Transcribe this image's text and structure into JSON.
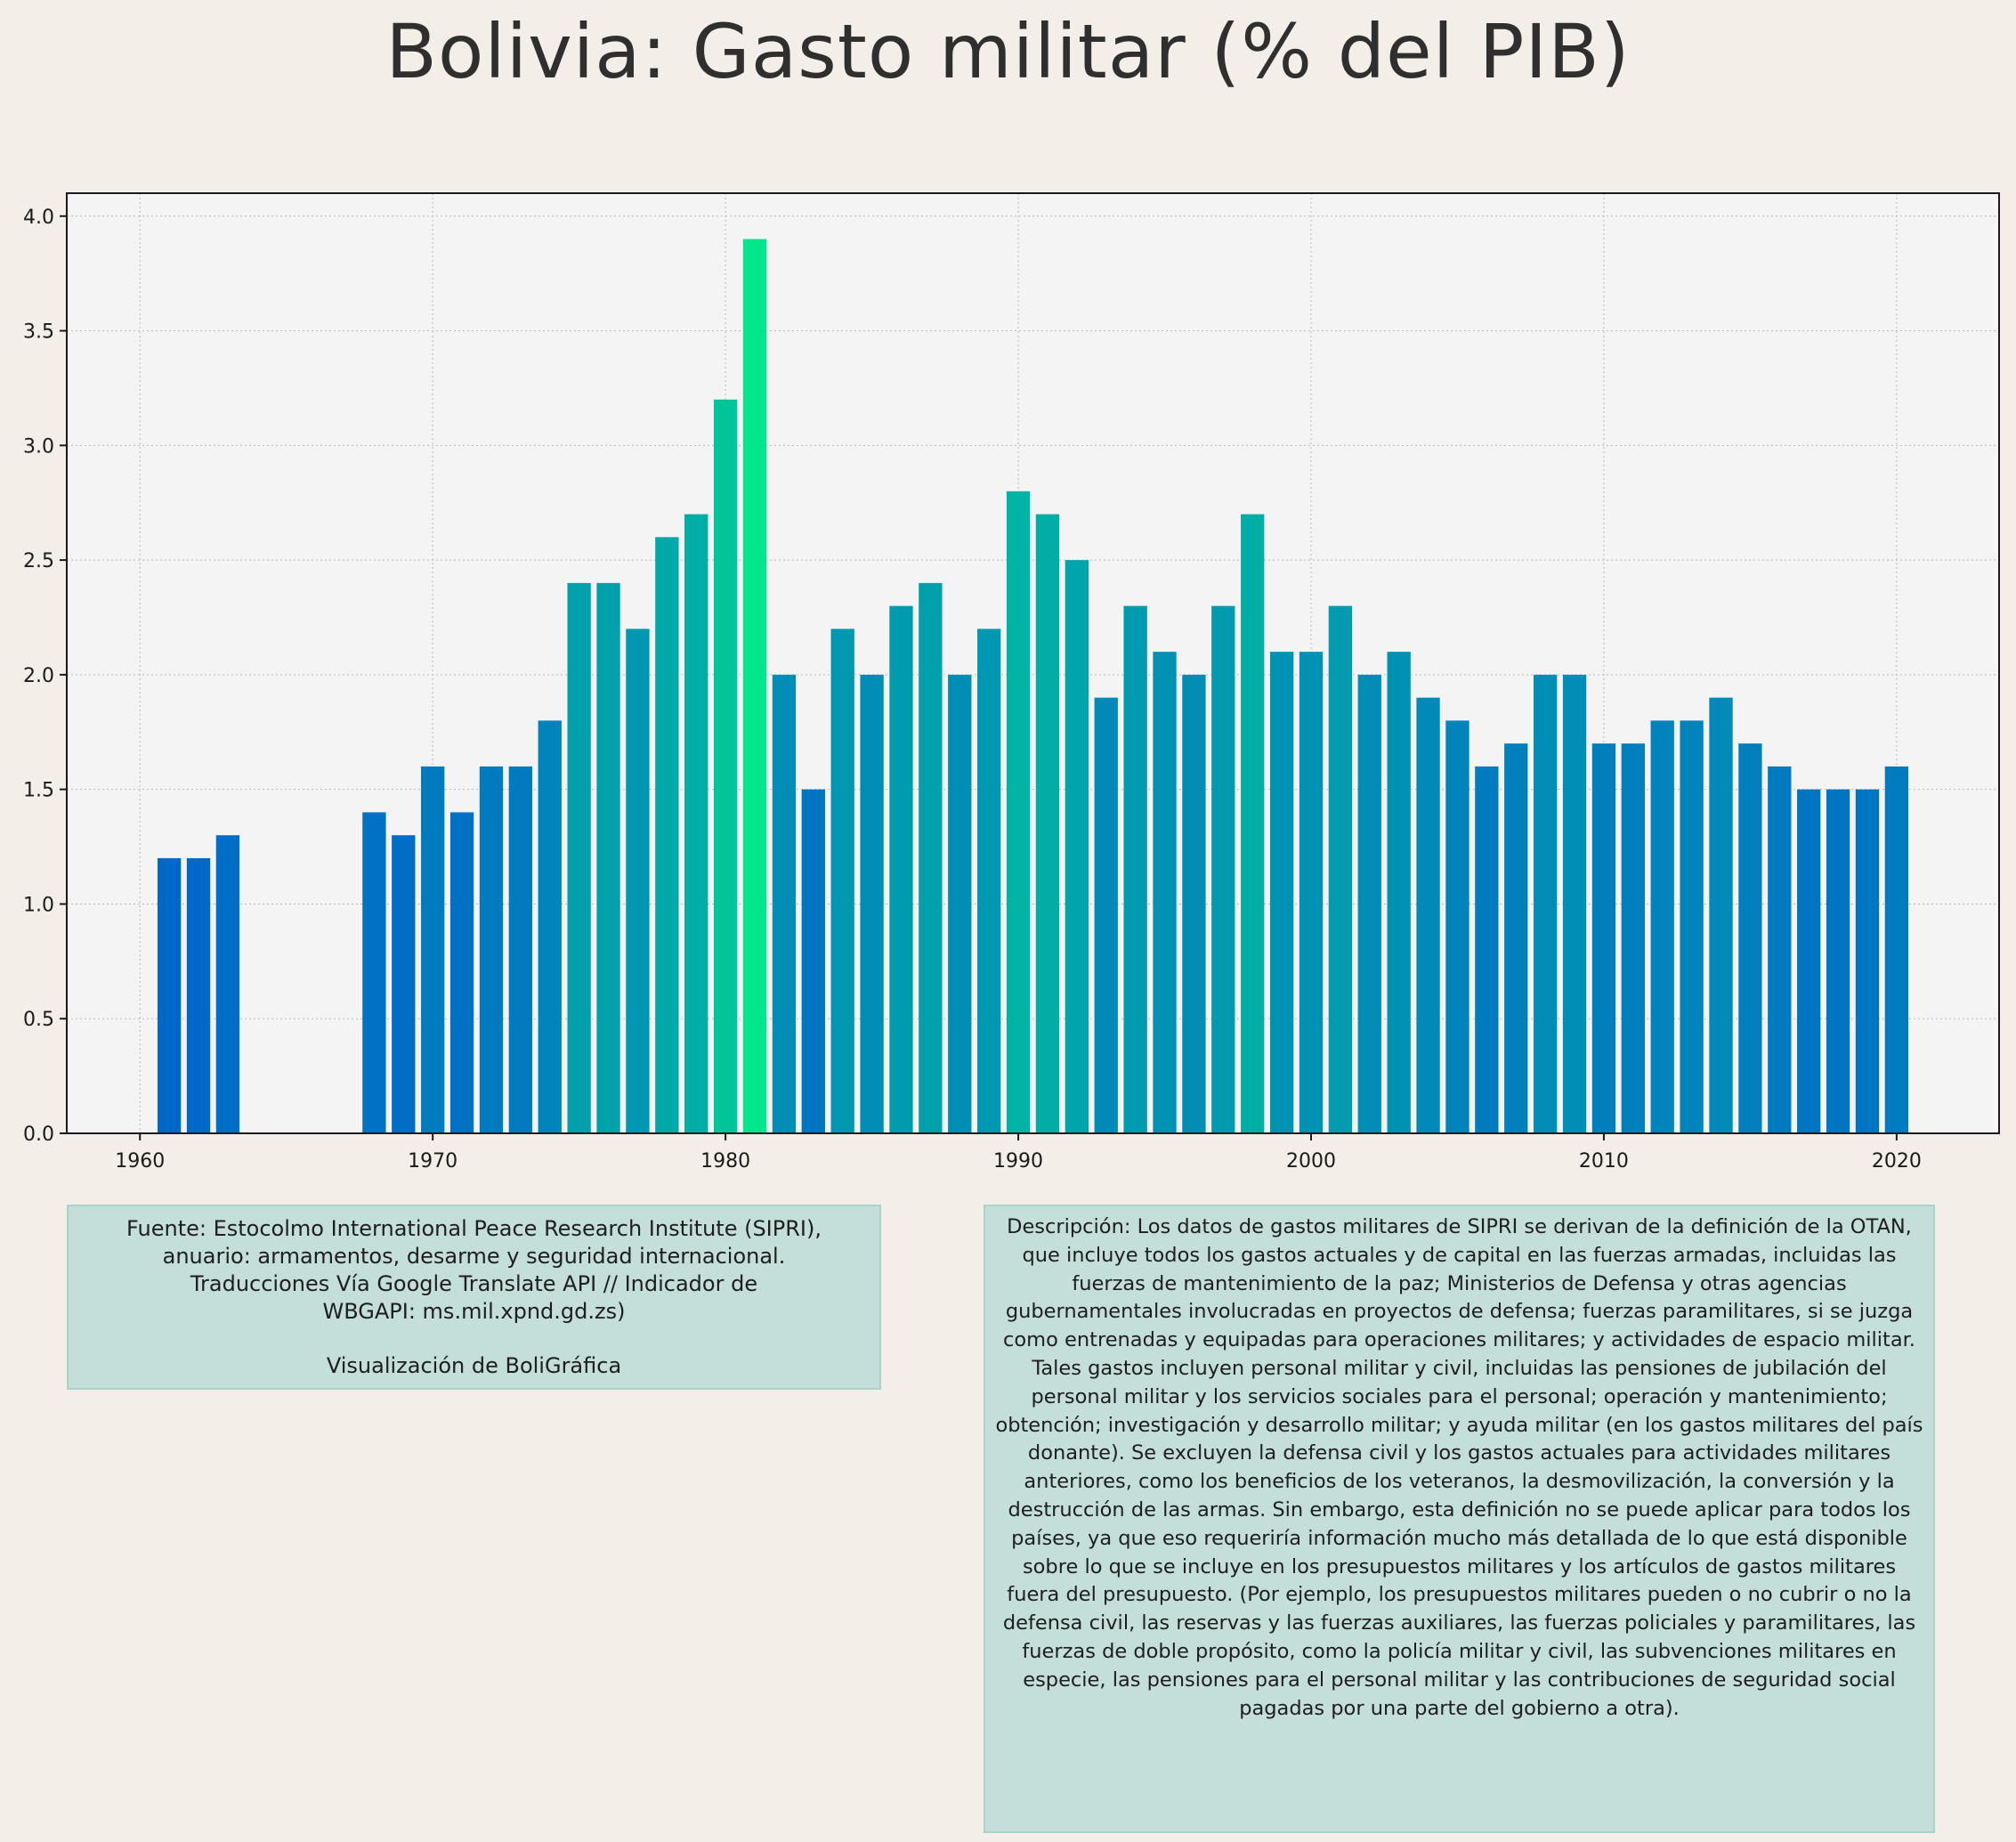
{
  "title": "Bolivia:  Gasto militar (% del PIB)",
  "chart_data": {
    "type": "bar",
    "title": "Bolivia:  Gasto militar (% del PIB)",
    "xlabel": "",
    "ylabel": "",
    "x": [
      1961,
      1962,
      1963,
      1968,
      1969,
      1970,
      1971,
      1972,
      1973,
      1974,
      1975,
      1976,
      1977,
      1978,
      1979,
      1980,
      1981,
      1982,
      1983,
      1984,
      1985,
      1986,
      1987,
      1988,
      1989,
      1990,
      1991,
      1992,
      1993,
      1994,
      1995,
      1996,
      1997,
      1998,
      1999,
      2000,
      2001,
      2002,
      2003,
      2004,
      2005,
      2006,
      2007,
      2008,
      2009,
      2010,
      2011,
      2012,
      2013,
      2014,
      2015,
      2016,
      2017,
      2018,
      2019,
      2020
    ],
    "values": [
      1.2,
      1.2,
      1.3,
      1.4,
      1.3,
      1.6,
      1.4,
      1.6,
      1.6,
      1.8,
      2.4,
      2.4,
      2.2,
      2.6,
      2.7,
      3.2,
      3.9,
      2.0,
      1.5,
      2.2,
      2.0,
      2.3,
      2.4,
      2.0,
      2.2,
      2.8,
      2.7,
      2.5,
      1.9,
      2.3,
      2.1,
      2.0,
      2.3,
      2.7,
      2.1,
      2.1,
      2.3,
      2.0,
      2.1,
      1.9,
      1.8,
      1.6,
      1.7,
      2.0,
      2.0,
      1.7,
      1.7,
      1.8,
      1.8,
      1.9,
      1.7,
      1.6,
      1.5,
      1.5,
      1.5,
      1.6
    ],
    "xlim": [
      1957.5,
      2023.5
    ],
    "ylim": [
      0,
      4.1
    ],
    "xticks": [
      1960,
      1970,
      1980,
      1990,
      2000,
      2010,
      2020
    ],
    "yticks": [
      0.0,
      0.5,
      1.0,
      1.5,
      2.0,
      2.5,
      3.0,
      3.5,
      4.0
    ],
    "grid": true,
    "colormap": {
      "low": "#0068c9",
      "high": "#00e68a"
    }
  },
  "source": {
    "lines": [
      "Fuente: Estocolmo International Peace Research Institute (SIPRI),",
      "anuario: armamentos, desarme y seguridad internacional.",
      "Traducciones Vía Google Translate API // Indicador de",
      "WBGAPI: ms.mil.xpnd.gd.zs)"
    ],
    "credit": "Visualización de BoliGráfica"
  },
  "description": "Descripción: Los datos de gastos militares de SIPRI se derivan de la definición de la OTAN, que incluye todos los gastos actuales y de capital en las fuerzas armadas, incluidas las fuerzas de mantenimiento de la paz; Ministerios de Defensa y otras agencias gubernamentales involucradas en proyectos de defensa; fuerzas paramilitares, si se juzga como entrenadas y equipadas para operaciones militares; y actividades de espacio militar. Tales gastos incluyen personal militar y civil, incluidas las pensiones de jubilación del personal militar y los servicios sociales para el personal; operación y mantenimiento; obtención; investigación y desarrollo militar; y ayuda militar (en los gastos militares del país donante). Se excluyen la defensa civil y los gastos actuales para actividades militares anteriores, como los beneficios de los veteranos, la desmovilización, la conversión y la destrucción de las armas. Sin embargo, esta definición no se puede aplicar para todos los países, ya que eso requeriría información mucho más detallada de lo que está disponible sobre lo que se incluye en los presupuestos militares y los artículos de gastos militares fuera del presupuesto. (Por ejemplo, los presupuestos militares pueden o no cubrir o no la defensa civil, las reservas y las fuerzas auxiliares, las fuerzas policiales y paramilitares, las fuerzas de doble propósito, como la policía militar y civil, las subvenciones militares en especie, las pensiones para el personal militar y las contribuciones de seguridad social pagadas por una parte del gobierno a otra)."
}
